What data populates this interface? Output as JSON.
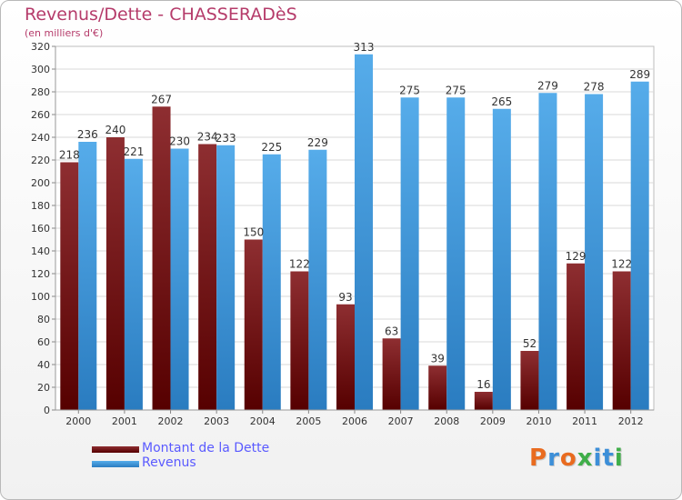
{
  "chart_data": {
    "type": "bar",
    "title": "Revenus/Dette - CHASSERADèS",
    "subtitle": "(en milliers d'€)",
    "categories": [
      "2000",
      "2001",
      "2002",
      "2003",
      "2004",
      "2005",
      "2006",
      "2007",
      "2008",
      "2009",
      "2010",
      "2011",
      "2012"
    ],
    "series": [
      {
        "name": "Montant de la Dette",
        "color": "#7a1e21",
        "values": [
          218,
          240,
          267,
          234,
          150,
          122,
          93,
          63,
          39,
          16,
          52,
          129,
          122
        ]
      },
      {
        "name": "Revenus",
        "color": "#4aa0e0",
        "values": [
          236,
          221,
          230,
          233,
          225,
          229,
          313,
          275,
          275,
          265,
          279,
          278,
          289
        ]
      }
    ],
    "ylim": [
      0,
      320
    ],
    "y_ticks": [
      0,
      20,
      40,
      60,
      80,
      100,
      120,
      140,
      160,
      180,
      200,
      220,
      240,
      260,
      280,
      300,
      320
    ],
    "grid": true,
    "legend": "bottom-left"
  },
  "logo": {
    "text": "Proxiti",
    "colors": [
      "#e96b1f",
      "#3d8fd8",
      "#e96b1f",
      "#3fae49",
      "#3d8fd8",
      "#3d8fd8",
      "#3fae49"
    ]
  }
}
